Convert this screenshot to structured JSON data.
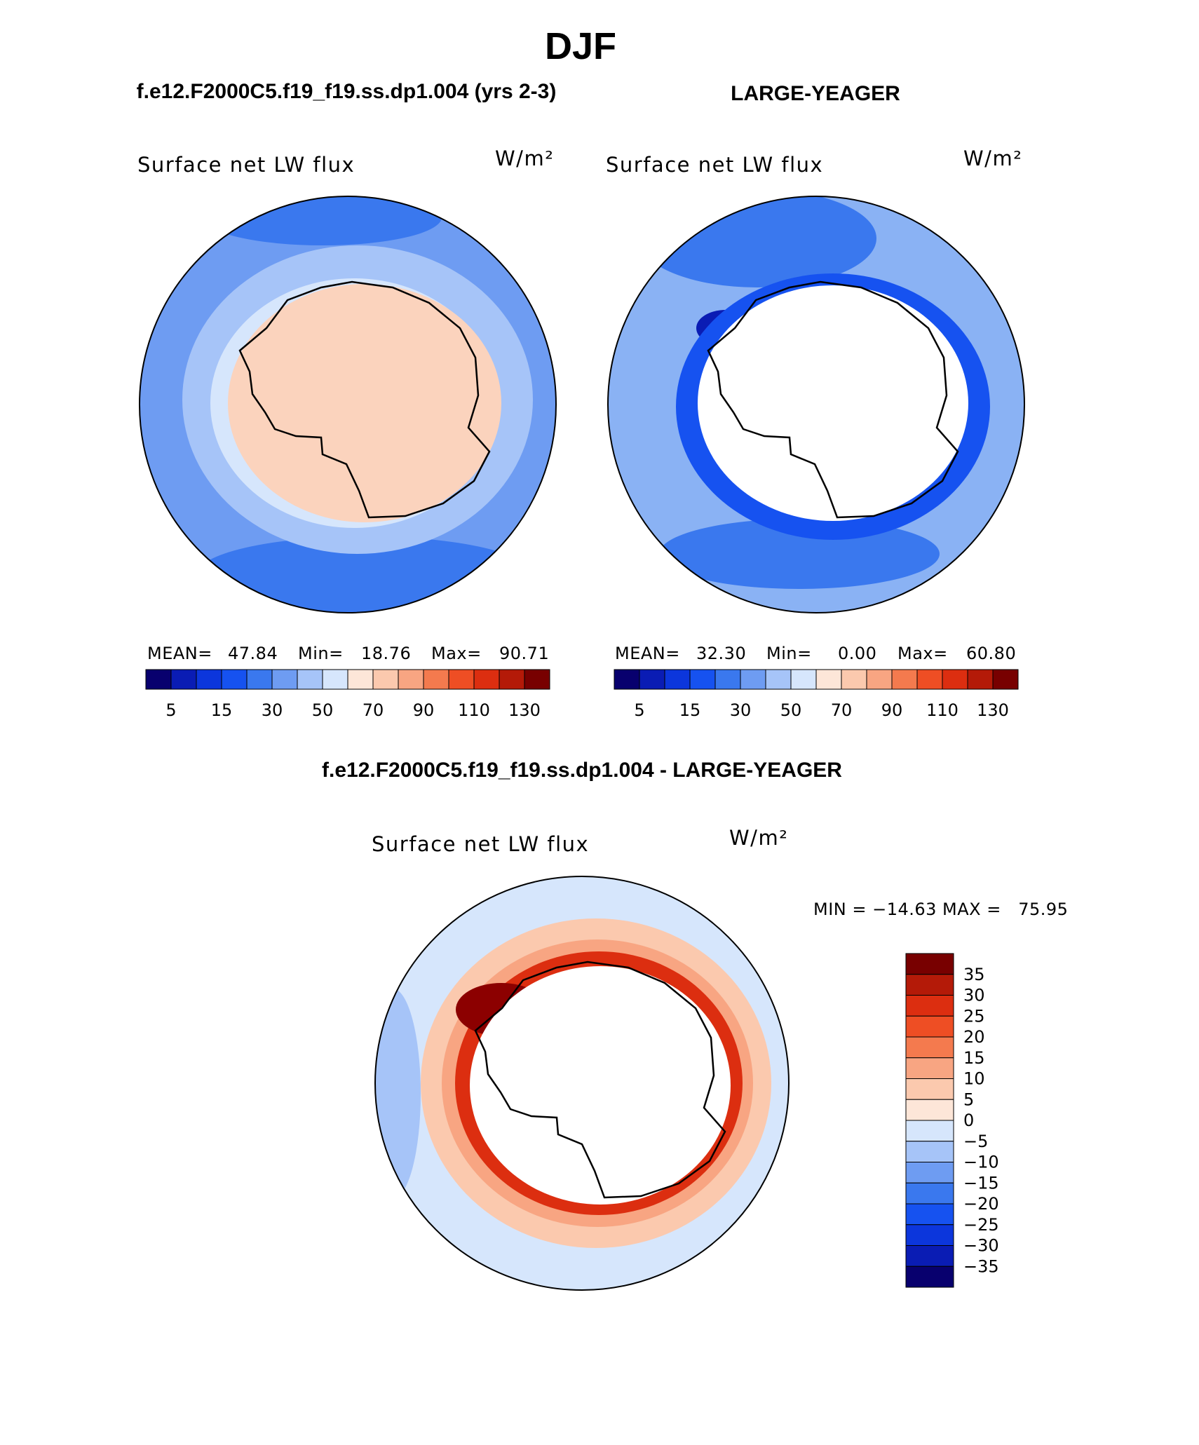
{
  "title": "DJF",
  "palette": {
    "seq": [
      "#08006e",
      "#0a1cb4",
      "#0c36dc",
      "#1652f0",
      "#3a78ee",
      "#6e9cf2",
      "#a6c4f8",
      "#d6e6fc",
      "#fde6d8",
      "#fbc9ae",
      "#f8a582",
      "#f47a4e",
      "#ee4e24",
      "#dc2e10",
      "#b41a08",
      "#780000"
    ],
    "ocean_a": "#6e9cf2",
    "ocean_a_inner": "#a6c4f8",
    "land_a": "#fbd3bd",
    "ocean_b": "#8ab2f4",
    "ocean_b_dark": "#1652f0",
    "diff_bg": "#d6e6fc",
    "diff_hot": "#dc2e10",
    "diff_max": "#8c0000"
  },
  "chart_data": [
    {
      "type": "heatmap",
      "panel": "model",
      "title": "f.e12.F2000C5.f19_f19.ss.dp1.004 (yrs 2-3)",
      "label": "Surface net LW flux",
      "units": "W/m²",
      "stats": {
        "mean_label": "MEAN=",
        "mean": "47.84",
        "min_label": "Min=",
        "min": "18.76",
        "max_label": "Max=",
        "max": "90.71"
      },
      "colorbar_ticks": [
        "5",
        "15",
        "30",
        "50",
        "70",
        "90",
        "110",
        "130"
      ],
      "colorbar_levels": [
        0,
        5,
        10,
        15,
        20,
        30,
        40,
        50,
        60,
        70,
        80,
        90,
        100,
        110,
        120,
        130
      ],
      "projection": "south polar stereographic"
    },
    {
      "type": "heatmap",
      "panel": "observations",
      "title": "LARGE-YEAGER",
      "label": "Surface net LW flux",
      "units": "W/m²",
      "stats": {
        "mean_label": "MEAN=",
        "mean": "32.30",
        "min_label": "Min=",
        "min": "0.00",
        "max_label": "Max=",
        "max": "60.80"
      },
      "colorbar_ticks": [
        "5",
        "15",
        "30",
        "50",
        "70",
        "90",
        "110",
        "130"
      ],
      "colorbar_levels": [
        0,
        5,
        10,
        15,
        20,
        30,
        40,
        50,
        60,
        70,
        80,
        90,
        100,
        110,
        120,
        130
      ],
      "projection": "south polar stereographic"
    },
    {
      "type": "heatmap",
      "panel": "difference",
      "title": "f.e12.F2000C5.f19_f19.ss.dp1.004 - LARGE-YEAGER",
      "label": "Surface net LW flux",
      "units": "W/m²",
      "stats": {
        "text": "MIN = −14.63 MAX =   75.95",
        "min": -14.63,
        "max": 75.95
      },
      "colorbar_ticks": [
        "35",
        "30",
        "25",
        "20",
        "15",
        "10",
        "5",
        "0",
        "−5",
        "−10",
        "−15",
        "−20",
        "−25",
        "−30",
        "−35"
      ],
      "colorbar_levels": [
        -35,
        -30,
        -25,
        -20,
        -15,
        -10,
        -5,
        0,
        5,
        10,
        15,
        20,
        25,
        30,
        35
      ],
      "projection": "south polar stereographic"
    }
  ]
}
